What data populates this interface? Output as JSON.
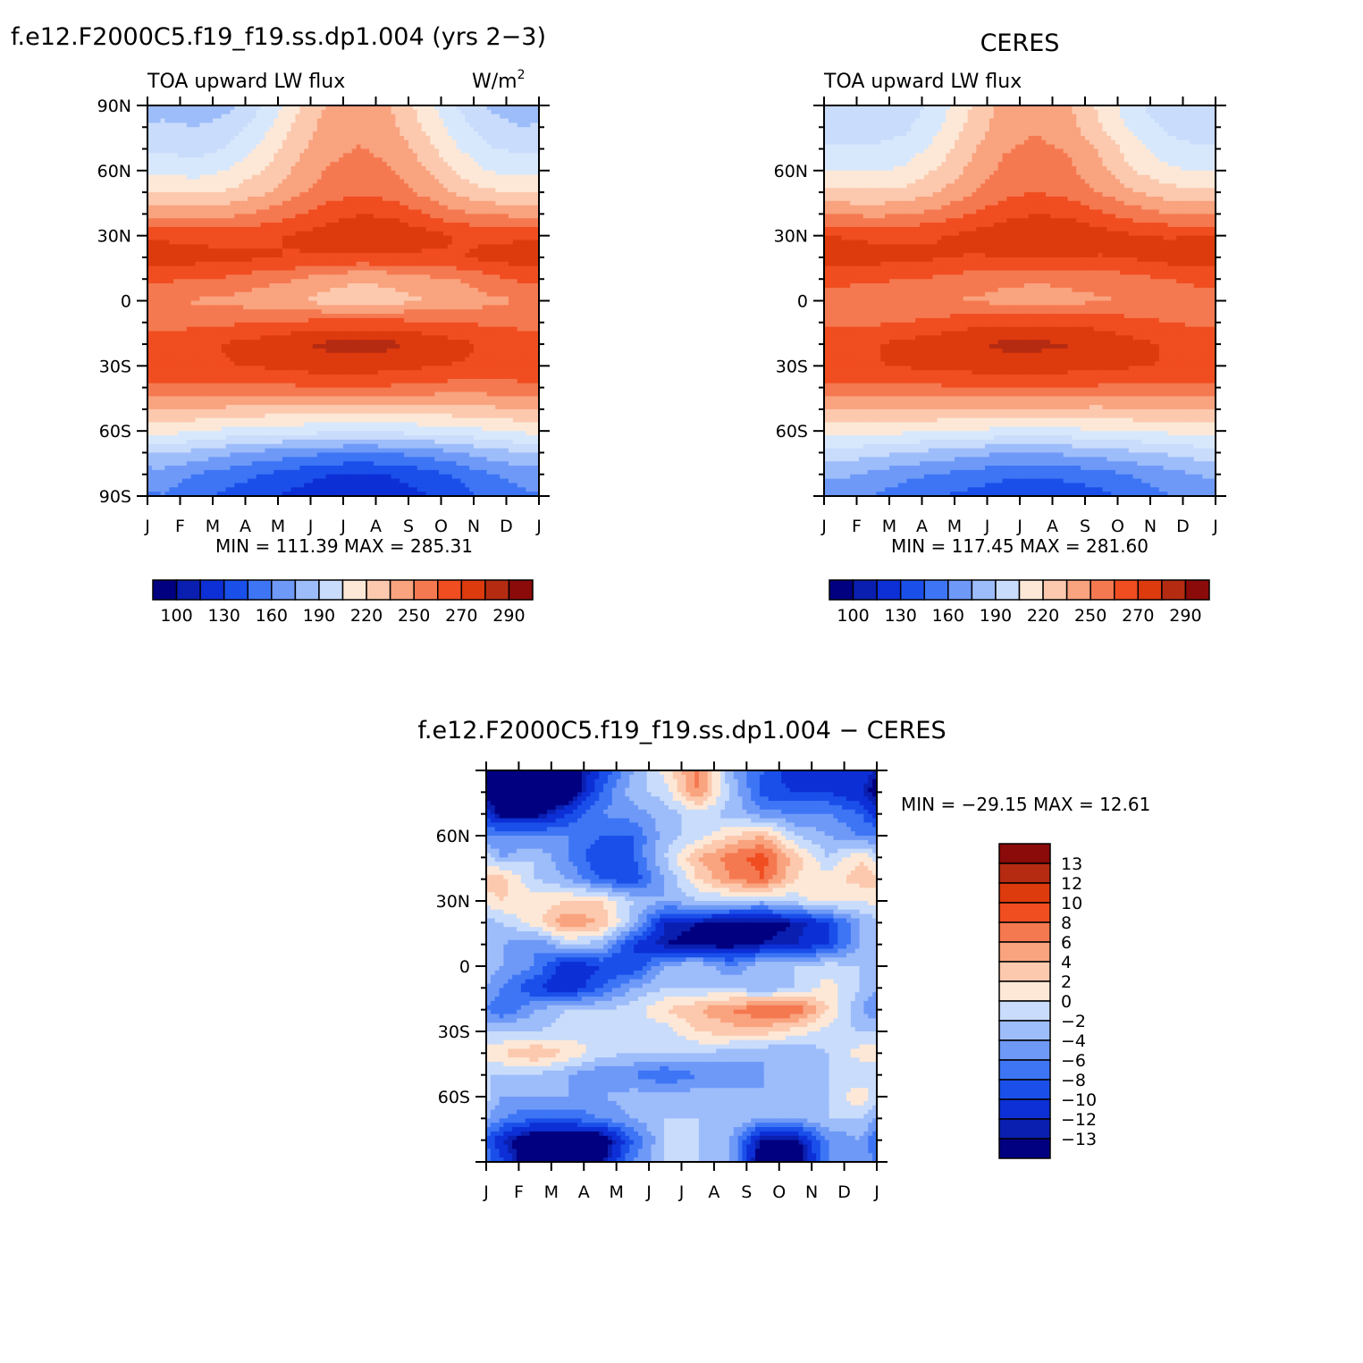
{
  "figure": {
    "panels": [
      {
        "id": "model",
        "title": "f.e12.F2000C5.f19_f19.ss.dp1.004 (yrs 2−3)",
        "left_label": "TOA upward LW flux",
        "right_label": "W/m",
        "right_label_sup": "2",
        "min_max": "MIN = 111.39 MAX = 285.31"
      },
      {
        "id": "ceres",
        "title": "CERES",
        "left_label": "TOA upward LW flux",
        "right_label": "",
        "right_label_sup": "",
        "min_max": "MIN = 117.45 MAX = 281.60"
      },
      {
        "id": "diff",
        "title": "f.e12.F2000C5.f19_f19.ss.dp1.004 − CERES",
        "left_label": "",
        "right_label": "",
        "right_label_sup": "",
        "min_max": "MIN = −29.15 MAX =   12.61"
      }
    ],
    "month_labels": [
      "J",
      "F",
      "M",
      "A",
      "M",
      "J",
      "J",
      "A",
      "S",
      "O",
      "N",
      "D",
      "J"
    ],
    "colorbar_abs_labels": [
      "100",
      "130",
      "160",
      "190",
      "220",
      "250",
      "270",
      "290"
    ],
    "colorbar_diff_labels": [
      "13",
      "12",
      "10",
      "8",
      "6",
      "4",
      "2",
      "0",
      "−2",
      "−4",
      "−6",
      "−8",
      "−10",
      "−12",
      "−13"
    ],
    "colors_abs": [
      "#000080",
      "#0a1fb0",
      "#0d2fd6",
      "#1a4fea",
      "#3d75f5",
      "#6e99f7",
      "#9dbcfa",
      "#c9dcfb",
      "#d8e8fc",
      "#fde8d7",
      "#fcc9ae",
      "#f9a37f",
      "#f57950",
      "#f04d20",
      "#dd3a0e",
      "#b52b12",
      "#8b0a0a"
    ],
    "colors_diff": [
      "#000080",
      "#0a1fb0",
      "#0d2fd6",
      "#1a4fea",
      "#3d75f5",
      "#6e99f7",
      "#9dbcfa",
      "#c9dcfb",
      "#fde8d7",
      "#fcc9ae",
      "#f9a37f",
      "#f57950",
      "#f04d20",
      "#dd3a0e",
      "#b52b12",
      "#8b0a0a"
    ]
  },
  "chart_data": [
    {
      "type": "heatmap",
      "title": "f.e12.F2000C5.f19_f19.ss.dp1.004 (yrs 2−3)",
      "variable": "TOA upward LW flux",
      "units": "W/m2",
      "x": [
        "J",
        "F",
        "M",
        "A",
        "M",
        "J",
        "J",
        "A",
        "S",
        "O",
        "N",
        "D",
        "J"
      ],
      "y_ticks": [
        "90N",
        "60N",
        "30N",
        "0",
        "30S",
        "60S",
        "90S"
      ],
      "xlim": [
        0,
        12
      ],
      "ylim": [
        -90,
        90
      ],
      "levels": [
        100,
        110,
        120,
        130,
        140,
        150,
        160,
        170,
        180,
        190,
        200,
        210,
        220,
        230,
        240,
        250,
        260,
        270,
        280,
        290
      ],
      "lat": [
        90,
        80,
        70,
        60,
        50,
        40,
        30,
        20,
        10,
        0,
        -10,
        -20,
        -30,
        -40,
        -50,
        -60,
        -70,
        -80,
        -90
      ],
      "month": [
        0.5,
        1.5,
        2.5,
        3.5,
        4.5,
        5.5,
        6.5,
        7.5,
        8.5,
        9.5,
        10.5,
        11.5
      ],
      "values": [
        [
          172,
          168,
          172,
          188,
          210,
          228,
          232,
          226,
          208,
          188,
          174,
          170
        ],
        [
          178,
          176,
          182,
          196,
          216,
          232,
          236,
          230,
          212,
          194,
          180,
          176
        ],
        [
          186,
          184,
          190,
          204,
          222,
          236,
          240,
          236,
          220,
          202,
          190,
          186
        ],
        [
          198,
          196,
          202,
          214,
          228,
          240,
          244,
          240,
          228,
          212,
          200,
          198
        ],
        [
          214,
          212,
          216,
          224,
          236,
          246,
          250,
          246,
          236,
          224,
          216,
          214
        ],
        [
          236,
          234,
          236,
          242,
          250,
          258,
          264,
          262,
          252,
          242,
          238,
          236
        ],
        [
          262,
          260,
          260,
          262,
          266,
          272,
          278,
          276,
          270,
          264,
          262,
          262
        ],
        [
          272,
          270,
          268,
          266,
          264,
          262,
          262,
          262,
          262,
          264,
          268,
          272
        ],
        [
          254,
          252,
          250,
          244,
          240,
          232,
          228,
          230,
          236,
          240,
          248,
          254
        ],
        [
          240,
          238,
          236,
          232,
          228,
          222,
          220,
          222,
          226,
          230,
          236,
          240
        ],
        [
          248,
          248,
          250,
          252,
          254,
          256,
          256,
          256,
          254,
          252,
          250,
          248
        ],
        [
          260,
          262,
          266,
          270,
          276,
          280,
          282,
          280,
          274,
          268,
          262,
          260
        ],
        [
          262,
          262,
          264,
          266,
          270,
          272,
          272,
          270,
          266,
          264,
          262,
          262
        ],
        [
          248,
          248,
          248,
          248,
          250,
          250,
          250,
          250,
          248,
          246,
          246,
          248
        ],
        [
          226,
          226,
          224,
          222,
          220,
          218,
          218,
          218,
          220,
          222,
          224,
          226
        ],
        [
          206,
          202,
          198,
          196,
          194,
          192,
          192,
          192,
          194,
          196,
          200,
          204
        ],
        [
          178,
          172,
          166,
          160,
          156,
          152,
          150,
          152,
          156,
          162,
          170,
          176
        ],
        [
          158,
          150,
          144,
          138,
          132,
          126,
          124,
          126,
          132,
          140,
          150,
          156
        ],
        [
          150,
          142,
          134,
          128,
          122,
          116,
          114,
          118,
          124,
          132,
          142,
          148
        ]
      ]
    },
    {
      "type": "heatmap",
      "title": "CERES",
      "variable": "TOA upward LW flux",
      "x": [
        "J",
        "F",
        "M",
        "A",
        "M",
        "J",
        "J",
        "A",
        "S",
        "O",
        "N",
        "D",
        "J"
      ],
      "y_ticks": [
        "60N",
        "30N",
        "0",
        "30S",
        "60S"
      ],
      "xlim": [
        0,
        12
      ],
      "ylim": [
        -90,
        90
      ],
      "levels": [
        100,
        110,
        120,
        130,
        140,
        150,
        160,
        170,
        180,
        190,
        200,
        210,
        220,
        230,
        240,
        250,
        260,
        270,
        280,
        290
      ],
      "lat": [
        90,
        80,
        70,
        60,
        50,
        40,
        30,
        20,
        10,
        0,
        -10,
        -20,
        -30,
        -40,
        -50,
        -60,
        -70,
        -80,
        -90
      ],
      "month": [
        0.5,
        1.5,
        2.5,
        3.5,
        4.5,
        5.5,
        6.5,
        7.5,
        8.5,
        9.5,
        10.5,
        11.5
      ],
      "values": [
        [
          176,
          176,
          180,
          194,
          214,
          230,
          234,
          228,
          210,
          192,
          180,
          176
        ],
        [
          182,
          182,
          186,
          200,
          218,
          234,
          238,
          232,
          214,
          198,
          186,
          182
        ],
        [
          190,
          190,
          194,
          206,
          224,
          238,
          242,
          238,
          224,
          206,
          194,
          190
        ],
        [
          200,
          200,
          204,
          216,
          230,
          242,
          246,
          242,
          230,
          214,
          204,
          200
        ],
        [
          216,
          216,
          218,
          226,
          238,
          248,
          252,
          248,
          238,
          228,
          220,
          216
        ],
        [
          238,
          236,
          238,
          244,
          252,
          260,
          264,
          262,
          254,
          246,
          240,
          238
        ],
        [
          264,
          262,
          262,
          264,
          268,
          274,
          278,
          276,
          270,
          266,
          264,
          264
        ],
        [
          272,
          270,
          268,
          266,
          264,
          264,
          264,
          264,
          264,
          266,
          270,
          272
        ],
        [
          256,
          254,
          252,
          250,
          246,
          242,
          240,
          242,
          244,
          248,
          252,
          256
        ],
        [
          244,
          244,
          242,
          240,
          238,
          236,
          236,
          236,
          238,
          240,
          242,
          244
        ],
        [
          250,
          250,
          252,
          256,
          260,
          262,
          262,
          262,
          260,
          256,
          252,
          250
        ],
        [
          262,
          264,
          268,
          272,
          276,
          280,
          280,
          278,
          274,
          268,
          264,
          262
        ],
        [
          264,
          264,
          266,
          268,
          270,
          272,
          272,
          270,
          268,
          266,
          264,
          264
        ],
        [
          250,
          250,
          250,
          250,
          252,
          252,
          252,
          252,
          250,
          250,
          250,
          250
        ],
        [
          228,
          228,
          226,
          226,
          224,
          224,
          224,
          224,
          224,
          226,
          228,
          228
        ],
        [
          208,
          206,
          204,
          202,
          200,
          198,
          198,
          198,
          200,
          202,
          204,
          206
        ],
        [
          184,
          180,
          176,
          172,
          168,
          164,
          164,
          166,
          170,
          174,
          178,
          182
        ],
        [
          166,
          160,
          154,
          150,
          146,
          142,
          140,
          142,
          146,
          152,
          158,
          164
        ],
        [
          156,
          150,
          144,
          138,
          134,
          128,
          126,
          130,
          134,
          142,
          150,
          154
        ]
      ]
    },
    {
      "type": "heatmap",
      "title": "f.e12.F2000C5.f19_f19.ss.dp1.004 − CERES",
      "x": [
        "J",
        "F",
        "M",
        "A",
        "M",
        "J",
        "J",
        "A",
        "S",
        "O",
        "N",
        "D",
        "J"
      ],
      "y_ticks": [
        "60N",
        "30N",
        "0",
        "30S",
        "60S"
      ],
      "xlim": [
        0,
        12
      ],
      "ylim": [
        -90,
        90
      ],
      "levels": [
        -13,
        -12,
        -10,
        -8,
        -6,
        -4,
        -2,
        0,
        2,
        4,
        6,
        8,
        10,
        12,
        13
      ],
      "lat": [
        90,
        80,
        70,
        60,
        50,
        40,
        30,
        20,
        10,
        0,
        -10,
        -20,
        -30,
        -40,
        -50,
        -60,
        -70,
        -80,
        -90
      ],
      "month": [
        0.5,
        1.5,
        2.5,
        3.5,
        4.5,
        5.5,
        6.5,
        7.5,
        8.5,
        9.5,
        10.5,
        11.5
      ],
      "values": [
        [
          -16,
          -16,
          -16,
          -10,
          -4,
          1,
          7,
          -4,
          -8,
          -12,
          -10,
          -10
        ],
        [
          -16,
          -18,
          -16,
          -8,
          -3,
          -1,
          6,
          -2,
          -9,
          -10,
          -10,
          -12
        ],
        [
          -14,
          -14,
          -10,
          -6,
          -5,
          -3,
          -1,
          -3,
          -5,
          -6,
          -6,
          -8
        ],
        [
          -6,
          -6,
          -6,
          -8,
          -8,
          -3,
          -1,
          2,
          4,
          -2,
          -4,
          -6
        ],
        [
          -4,
          -2,
          -6,
          -10,
          -8,
          -2,
          4,
          7,
          9,
          3,
          -2,
          2
        ],
        [
          3,
          -2,
          -4,
          -8,
          -10,
          -4,
          2,
          6,
          8,
          2,
          1,
          3
        ],
        [
          2,
          1,
          2,
          2,
          -2,
          -4,
          -2,
          -2,
          -3,
          -1,
          1,
          0
        ],
        [
          -2,
          1,
          6,
          4,
          -3,
          -12,
          -13,
          -14,
          -14,
          -13,
          -10,
          -4
        ],
        [
          -4,
          -6,
          -2,
          -3,
          -10,
          -13,
          -14,
          -14,
          -13,
          -12,
          -10,
          -4
        ],
        [
          -4,
          -6,
          -12,
          -10,
          -10,
          -4,
          -2,
          -6,
          -2,
          -2,
          -1,
          -2
        ],
        [
          -6,
          -10,
          -12,
          -8,
          -4,
          -2,
          -2,
          -2,
          -4,
          -2,
          1,
          -2
        ],
        [
          -8,
          -4,
          -2,
          -2,
          -1,
          2,
          4,
          6,
          8,
          8,
          2,
          -4
        ],
        [
          -2,
          -2,
          -1,
          -1,
          -1,
          -1,
          2,
          3,
          3,
          1,
          -1,
          -2
        ],
        [
          2,
          4,
          2,
          -1,
          -2,
          -2,
          -2,
          -3,
          -4,
          -4,
          -2,
          1
        ],
        [
          -2,
          -2,
          -4,
          -6,
          -6,
          -8,
          -6,
          -6,
          -4,
          -4,
          -2,
          -2
        ],
        [
          -4,
          -4,
          -4,
          -4,
          -3,
          -3,
          -3,
          -3,
          -4,
          -4,
          -2,
          2
        ],
        [
          -6,
          -8,
          -8,
          -6,
          -4,
          -2,
          -2,
          -2,
          -4,
          -4,
          -2,
          -2
        ],
        [
          -12,
          -16,
          -16,
          -16,
          -8,
          -2,
          -2,
          -4,
          -14,
          -14,
          -6,
          -4
        ],
        [
          -10,
          -16,
          -16,
          -14,
          -6,
          -2,
          -2,
          -4,
          -16,
          -16,
          -6,
          -4
        ]
      ]
    }
  ]
}
